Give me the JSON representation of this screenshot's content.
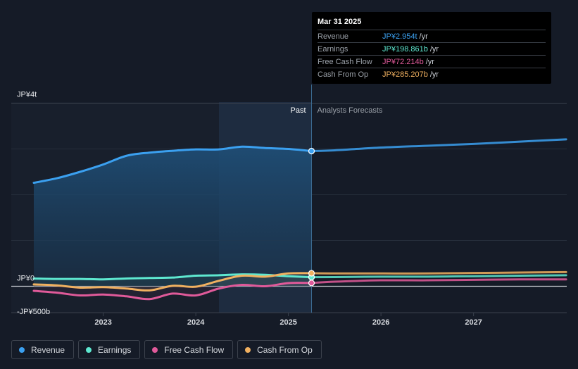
{
  "tooltip": {
    "date": "Mar 31 2025",
    "rows": [
      {
        "label": "Revenue",
        "value": "JP¥2.954t",
        "unit": "/yr",
        "color": "#3ba0f0"
      },
      {
        "label": "Earnings",
        "value": "JP¥198.861b",
        "unit": "/yr",
        "color": "#5ee8d0"
      },
      {
        "label": "Free Cash Flow",
        "value": "JP¥72.214b",
        "unit": "/yr",
        "color": "#e05a9a"
      },
      {
        "label": "Cash From Op",
        "value": "JP¥285.207b",
        "unit": "/yr",
        "color": "#f0b060"
      }
    ]
  },
  "legend": [
    {
      "label": "Revenue",
      "color": "#3ba0f0"
    },
    {
      "label": "Earnings",
      "color": "#5ee8d0"
    },
    {
      "label": "Free Cash Flow",
      "color": "#e05a9a"
    },
    {
      "label": "Cash From Op",
      "color": "#f0b060"
    }
  ],
  "chart_data": {
    "type": "line",
    "title": "",
    "xlabel": "",
    "ylabel": "",
    "ylim": [
      -0.5,
      4
    ],
    "y_unit": "trillion JPY",
    "y_labels": [
      {
        "value": 4,
        "text": "JP¥4t"
      },
      {
        "value": 0,
        "text": "JP¥0"
      },
      {
        "value": -0.5,
        "text": "-JP¥500b"
      }
    ],
    "x_range": [
      2022.25,
      2028.0
    ],
    "x_ticks": [
      {
        "value": 2023,
        "text": "2023"
      },
      {
        "value": 2024,
        "text": "2024"
      },
      {
        "value": 2025,
        "text": "2025"
      },
      {
        "value": 2026,
        "text": "2026"
      },
      {
        "value": 2027,
        "text": "2027"
      }
    ],
    "gridlines": [
      4,
      3,
      2,
      1,
      0
    ],
    "past_label": "Past",
    "forecast_label": "Analysts Forecasts",
    "past_end_x": 2025.25,
    "highlight_start_x": 2024.25,
    "series": [
      {
        "name": "Revenue",
        "color": "#3ba0f0",
        "fill": true,
        "points": [
          [
            2022.25,
            2.26
          ],
          [
            2022.5,
            2.36
          ],
          [
            2022.75,
            2.5
          ],
          [
            2023.0,
            2.66
          ],
          [
            2023.25,
            2.85
          ],
          [
            2023.5,
            2.92
          ],
          [
            2023.75,
            2.96
          ],
          [
            2024.0,
            2.99
          ],
          [
            2024.25,
            2.99
          ],
          [
            2024.5,
            3.05
          ],
          [
            2024.75,
            3.02
          ],
          [
            2025.0,
            3.0
          ],
          [
            2025.25,
            2.954
          ],
          [
            2025.5,
            2.97
          ],
          [
            2026.0,
            3.03
          ],
          [
            2026.5,
            3.07
          ],
          [
            2027.0,
            3.11
          ],
          [
            2027.5,
            3.16
          ],
          [
            2028.0,
            3.21
          ]
        ]
      },
      {
        "name": "Earnings",
        "color": "#5ee8d0",
        "fill": false,
        "points": [
          [
            2022.25,
            0.17
          ],
          [
            2022.5,
            0.16
          ],
          [
            2022.75,
            0.16
          ],
          [
            2023.0,
            0.15
          ],
          [
            2023.25,
            0.17
          ],
          [
            2023.5,
            0.18
          ],
          [
            2023.75,
            0.19
          ],
          [
            2024.0,
            0.23
          ],
          [
            2024.25,
            0.24
          ],
          [
            2024.5,
            0.26
          ],
          [
            2024.75,
            0.25
          ],
          [
            2025.0,
            0.22
          ],
          [
            2025.25,
            0.199
          ],
          [
            2025.5,
            0.2
          ],
          [
            2026.0,
            0.21
          ],
          [
            2026.5,
            0.21
          ],
          [
            2027.0,
            0.22
          ],
          [
            2027.5,
            0.23
          ],
          [
            2028.0,
            0.24
          ]
        ]
      },
      {
        "name": "Free Cash Flow",
        "color": "#e05a9a",
        "fill": false,
        "points": [
          [
            2022.25,
            -0.1
          ],
          [
            2022.5,
            -0.14
          ],
          [
            2022.75,
            -0.2
          ],
          [
            2023.0,
            -0.18
          ],
          [
            2023.25,
            -0.22
          ],
          [
            2023.5,
            -0.28
          ],
          [
            2023.75,
            -0.16
          ],
          [
            2024.0,
            -0.2
          ],
          [
            2024.25,
            -0.05
          ],
          [
            2024.5,
            0.03
          ],
          [
            2024.75,
            0.0
          ],
          [
            2025.0,
            0.07
          ],
          [
            2025.25,
            0.072
          ],
          [
            2025.5,
            0.1
          ],
          [
            2026.0,
            0.13
          ],
          [
            2026.5,
            0.13
          ],
          [
            2027.0,
            0.14
          ],
          [
            2027.5,
            0.15
          ],
          [
            2028.0,
            0.15
          ]
        ]
      },
      {
        "name": "Cash From Op",
        "color": "#f0b060",
        "fill": false,
        "points": [
          [
            2022.25,
            0.04
          ],
          [
            2022.5,
            0.02
          ],
          [
            2022.75,
            -0.03
          ],
          [
            2023.0,
            -0.02
          ],
          [
            2023.25,
            -0.05
          ],
          [
            2023.5,
            -0.09
          ],
          [
            2023.75,
            0.01
          ],
          [
            2024.0,
            -0.01
          ],
          [
            2024.25,
            0.12
          ],
          [
            2024.5,
            0.23
          ],
          [
            2024.75,
            0.21
          ],
          [
            2025.0,
            0.28
          ],
          [
            2025.25,
            0.285
          ],
          [
            2025.5,
            0.28
          ],
          [
            2026.0,
            0.28
          ],
          [
            2026.5,
            0.28
          ],
          [
            2027.0,
            0.29
          ],
          [
            2027.5,
            0.3
          ],
          [
            2028.0,
            0.31
          ]
        ]
      }
    ]
  }
}
